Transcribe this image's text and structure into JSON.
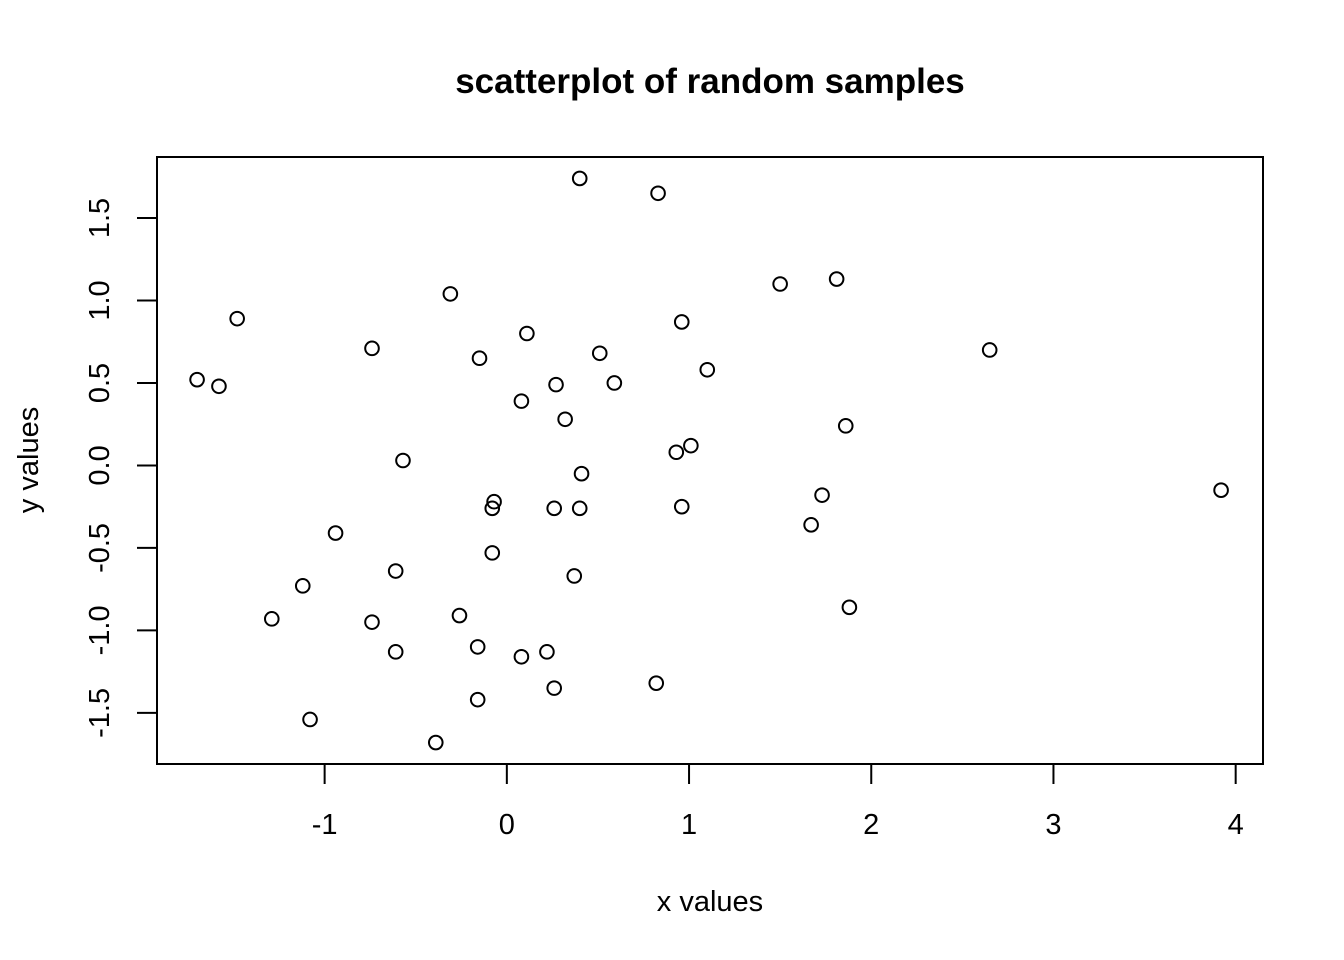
{
  "chart_data": {
    "type": "scatter",
    "title": "scatterplot of random samples",
    "xlabel": "x values",
    "ylabel": "y values",
    "xlim": [
      -1.92,
      4.15
    ],
    "ylim": [
      -1.81,
      1.87
    ],
    "xticks": [
      -1,
      0,
      1,
      2,
      3,
      4
    ],
    "yticks": [
      -1.5,
      -1.0,
      -0.5,
      0.0,
      0.5,
      1.0,
      1.5
    ],
    "xtick_labels": [
      "-1",
      "0",
      "1",
      "2",
      "3",
      "4"
    ],
    "ytick_labels": [
      "-1.5",
      "-1.0",
      "-0.5",
      "0.0",
      "0.5",
      "1.0",
      "1.5"
    ],
    "grid": false,
    "legend": "none",
    "marker": "open-circle",
    "colors": {
      "points": "#000000",
      "axes": "#000000",
      "background": "#ffffff"
    },
    "points": [
      {
        "x": 0.4,
        "y": 1.74
      },
      {
        "x": 0.83,
        "y": 1.65
      },
      {
        "x": 1.5,
        "y": 1.1
      },
      {
        "x": 1.81,
        "y": 1.13
      },
      {
        "x": -1.48,
        "y": 0.89
      },
      {
        "x": -0.31,
        "y": 1.04
      },
      {
        "x": 0.11,
        "y": 0.8
      },
      {
        "x": 0.96,
        "y": 0.87
      },
      {
        "x": -0.74,
        "y": 0.71
      },
      {
        "x": -0.15,
        "y": 0.65
      },
      {
        "x": 0.51,
        "y": 0.68
      },
      {
        "x": 2.65,
        "y": 0.7
      },
      {
        "x": -1.7,
        "y": 0.52
      },
      {
        "x": -1.58,
        "y": 0.48
      },
      {
        "x": 0.27,
        "y": 0.49
      },
      {
        "x": 0.59,
        "y": 0.5
      },
      {
        "x": 1.1,
        "y": 0.58
      },
      {
        "x": 0.08,
        "y": 0.39
      },
      {
        "x": 0.32,
        "y": 0.28
      },
      {
        "x": 1.86,
        "y": 0.24
      },
      {
        "x": 1.01,
        "y": 0.12
      },
      {
        "x": 0.93,
        "y": 0.08
      },
      {
        "x": -0.57,
        "y": 0.03
      },
      {
        "x": 0.41,
        "y": -0.05
      },
      {
        "x": 1.73,
        "y": -0.18
      },
      {
        "x": 3.92,
        "y": -0.15
      },
      {
        "x": -0.07,
        "y": -0.22
      },
      {
        "x": -0.08,
        "y": -0.26
      },
      {
        "x": 0.26,
        "y": -0.26
      },
      {
        "x": 0.4,
        "y": -0.26
      },
      {
        "x": 0.96,
        "y": -0.25
      },
      {
        "x": 1.67,
        "y": -0.36
      },
      {
        "x": -0.94,
        "y": -0.41
      },
      {
        "x": -0.08,
        "y": -0.53
      },
      {
        "x": -0.61,
        "y": -0.64
      },
      {
        "x": 0.37,
        "y": -0.67
      },
      {
        "x": -1.12,
        "y": -0.73
      },
      {
        "x": 1.88,
        "y": -0.86
      },
      {
        "x": -1.29,
        "y": -0.93
      },
      {
        "x": -0.74,
        "y": -0.95
      },
      {
        "x": -0.26,
        "y": -0.91
      },
      {
        "x": -0.16,
        "y": -1.1
      },
      {
        "x": -0.61,
        "y": -1.13
      },
      {
        "x": 0.08,
        "y": -1.16
      },
      {
        "x": 0.22,
        "y": -1.13
      },
      {
        "x": 0.82,
        "y": -1.32
      },
      {
        "x": 0.26,
        "y": -1.35
      },
      {
        "x": -0.16,
        "y": -1.42
      },
      {
        "x": -1.08,
        "y": -1.54
      },
      {
        "x": -0.39,
        "y": -1.68
      }
    ]
  }
}
